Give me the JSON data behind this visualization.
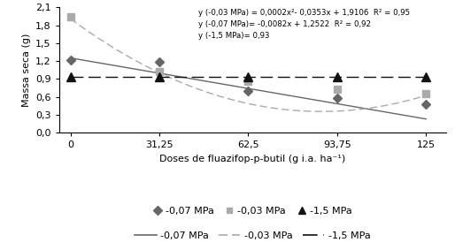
{
  "x_doses": [
    0,
    31.25,
    62.5,
    93.75,
    125
  ],
  "x_ticks": [
    0,
    31.25,
    62.5,
    93.75,
    125
  ],
  "x_tick_labels": [
    "0",
    "31,25",
    "62,5",
    "93,75",
    "125"
  ],
  "series_007": [
    1.22,
    1.18,
    0.7,
    0.58,
    0.47
  ],
  "series_003": [
    1.95,
    1.02,
    0.86,
    0.72,
    0.65
  ],
  "series_15": [
    0.93,
    0.93,
    0.93,
    0.93,
    0.93
  ],
  "color_007": "#666666",
  "color_003": "#aaaaaa",
  "color_15": "#111111",
  "xlabel": "Doses de fluazifop-p-butil (g i.a. ha⁻¹)",
  "ylabel": "Massa seca (g)",
  "ylim": [
    0.0,
    2.1
  ],
  "yticks": [
    0.0,
    0.3,
    0.6,
    0.9,
    1.2,
    1.5,
    1.8,
    2.1
  ],
  "ytick_labels": [
    "0,0",
    "0,3",
    "0,6",
    "0,9",
    "1,2",
    "1,5",
    "1,8",
    "2,1"
  ],
  "eq_003": "y (-0,03 MPa) = 0,0002x²- 0,0353x + 1,9106  R² = 0,95",
  "eq_007": "y (-0,07 MPa)= -0,0082x + 1,2522  R² = 0,92",
  "eq_15": "y (-1,5 MPa)= 0,93",
  "fit_003_a": 0.0002,
  "fit_003_b": -0.0353,
  "fit_003_c": 1.9106,
  "fit_007_a": -0.0082,
  "fit_007_b": 1.2522,
  "fit_15_val": 0.93,
  "legend_07_label": "-0,07 MPa",
  "legend_03_label": "-0,03 MPa",
  "legend_15_label": "-1,5 MPa"
}
